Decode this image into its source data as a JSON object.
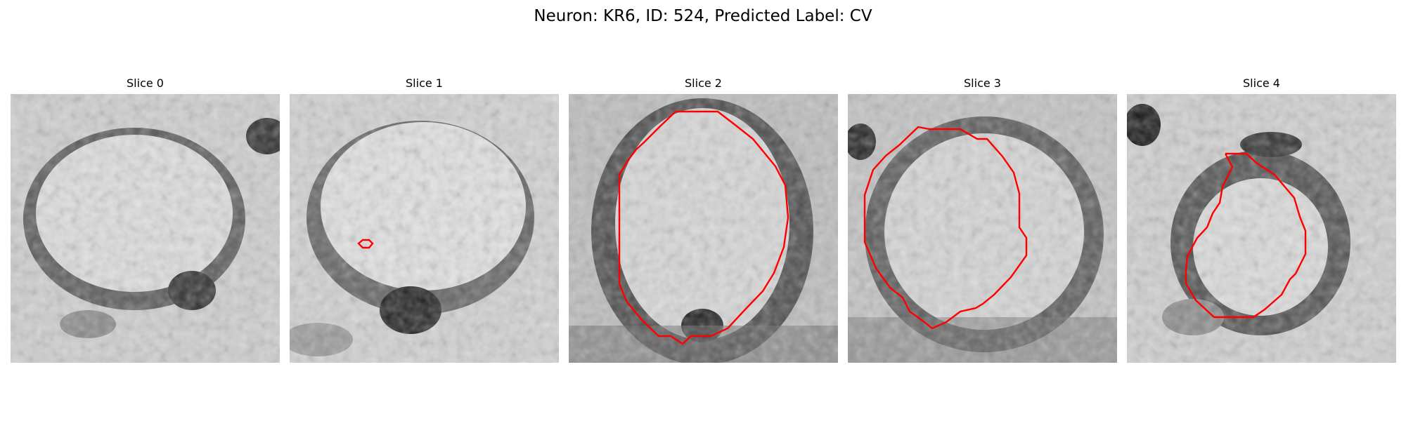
{
  "figure": {
    "title": "Neuron: KR6, ID: 524, Predicted Label: CV"
  },
  "colors": {
    "contour": "#ff0000"
  },
  "panels": [
    {
      "title": "Slice 0",
      "image": {
        "description_visual": "grayscale EM crop, round pale cell body outlined by a darker membrane ring",
        "has_contour": false
      }
    },
    {
      "title": "Slice 1",
      "image": {
        "description_visual": "grayscale EM crop, pale round body with a small red contour marker on the lower left",
        "has_contour": true
      }
    },
    {
      "title": "Slice 2",
      "image": {
        "description_visual": "grayscale EM crop, large red polygon contour around the round cell body",
        "has_contour": true
      }
    },
    {
      "title": "Slice 3",
      "image": {
        "description_visual": "grayscale EM crop, red polygon contour around the cell body",
        "has_contour": true
      }
    },
    {
      "title": "Slice 4",
      "image": {
        "description_visual": "grayscale EM crop, smaller red polygon contour around a pale region",
        "has_contour": true
      }
    }
  ]
}
